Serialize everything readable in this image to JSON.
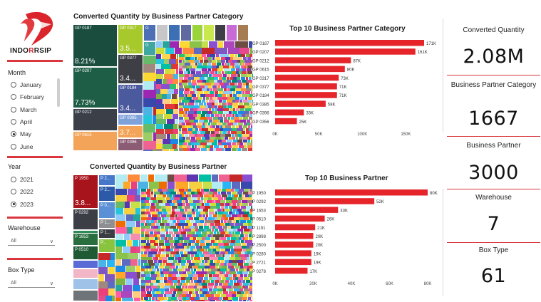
{
  "logo": {
    "text_prefix": "INDO",
    "text_r": "R",
    "text_suffix": "RSIP"
  },
  "sidebar": {
    "month": {
      "title": "Month",
      "items": [
        {
          "label": "January",
          "selected": false
        },
        {
          "label": "February",
          "selected": false
        },
        {
          "label": "March",
          "selected": false
        },
        {
          "label": "April",
          "selected": false
        },
        {
          "label": "May",
          "selected": true
        },
        {
          "label": "June",
          "selected": false
        }
      ]
    },
    "year": {
      "title": "Year",
      "items": [
        {
          "label": "2021",
          "selected": false
        },
        {
          "label": "2022",
          "selected": false
        },
        {
          "label": "2023",
          "selected": true
        }
      ]
    },
    "warehouse": {
      "title": "Warehouse",
      "value": "All"
    },
    "box_type": {
      "title": "Box Type",
      "value": "All"
    }
  },
  "treemap_category": {
    "title": "Converted Quantity by Business Partner Category",
    "tiles": [
      {
        "label": "GP 0187",
        "value": "8.21%",
        "color": "#1b4d3e"
      },
      {
        "label": "GP 0207",
        "value": "7.73%",
        "color": "#1f5e46"
      },
      {
        "label": "GP 0212",
        "value": "",
        "color": "#3a3f48"
      },
      {
        "label": "GP 0615",
        "value": "",
        "color": "#f4a458"
      },
      {
        "label": "GP 0317",
        "value": "3.5...",
        "color": "#a8c92c"
      },
      {
        "label": "GP 0377",
        "value": "",
        "color": "#3d3f45"
      },
      {
        "label": "GP 0184",
        "value": "3.4...",
        "color": "#4a5a9c"
      },
      {
        "label": "GP 0385",
        "value": "",
        "color": "#7fa2db"
      },
      {
        "label": "GP 0396",
        "value": "",
        "color": "#8c5c74"
      },
      {
        "label": "G",
        "value": "",
        "color": "#4d6fb5"
      },
      {
        "label": "G",
        "value": "",
        "color": "#3fa6a0"
      }
    ],
    "mid_values": [
      "3.4..."
    ]
  },
  "bar_category": {
    "title": "Top 10 Business Partner Category",
    "chart_data": {
      "type": "bar",
      "orientation": "horizontal",
      "categories": [
        "GP 0187",
        "GP 0207",
        "GP 0212",
        "GP 0615",
        "GP 0317",
        "GP 0377",
        "GP 0184",
        "GP 0385",
        "GP 0396",
        "GP 0356"
      ],
      "values": [
        171000,
        161000,
        87000,
        80000,
        73000,
        71000,
        71000,
        58000,
        33000,
        25000
      ],
      "labels": [
        "171K",
        "161K",
        "87K",
        "80K",
        "73K",
        "71K",
        "71K",
        "58K",
        "33K",
        "25K"
      ],
      "ticks": [
        "0K",
        "50K",
        "100K",
        "150K"
      ],
      "xlim": [
        0,
        180000
      ],
      "color": "#e5252a"
    }
  },
  "treemap_partner": {
    "title": "Converted Quantity by Business Partner",
    "tiles": [
      {
        "label": "P 1950",
        "value": "3.8...",
        "color": "#a8141c"
      },
      {
        "label": "P 0292",
        "value": "",
        "color": "#3b3e45"
      },
      {
        "label": "P 1653",
        "value": "",
        "color": "#2a6e3f"
      },
      {
        "label": "P 0510",
        "value": "",
        "color": "#1f5a34"
      },
      {
        "label": "P 2...",
        "value": "",
        "color": "#4677c8"
      },
      {
        "label": "P 2...",
        "value": "",
        "color": "#2c5aa8"
      },
      {
        "label": "P 0...",
        "value": "",
        "color": "#5b8fd6"
      },
      {
        "label": "P 1...",
        "value": "",
        "color": "#8d8f93"
      },
      {
        "label": "P 1...",
        "value": "",
        "color": "#3a3d42"
      },
      {
        "label": "P...",
        "value": "",
        "color": "#8ac43f"
      }
    ]
  },
  "bar_partner": {
    "title": "Top 10 Business Partner",
    "chart_data": {
      "type": "bar",
      "orientation": "horizontal",
      "categories": [
        "P 1950",
        "P 0292",
        "P 1653",
        "P 0510",
        "P 1191",
        "P 2898",
        "P 2500",
        "P 0280",
        "P 2721",
        "P 0278"
      ],
      "values": [
        80000,
        52000,
        33000,
        26000,
        21000,
        20000,
        20000,
        19000,
        19000,
        17000
      ],
      "labels": [
        "80K",
        "52K",
        "33K",
        "26K",
        "21K",
        "20K",
        "20K",
        "19K",
        "19K",
        "17K"
      ],
      "ticks": [
        "0K",
        "20K",
        "40K",
        "60K",
        "80K"
      ],
      "xlim": [
        0,
        80000
      ],
      "color": "#e5252a"
    }
  },
  "kpis": [
    {
      "label": "Converted Quantity",
      "value": "2.08M"
    },
    {
      "label": "Business Partner Category",
      "value": "1667"
    },
    {
      "label": "Business Partner",
      "value": "3000"
    },
    {
      "label": "Warehouse",
      "value": "7"
    },
    {
      "label": "Box Type",
      "value": "61"
    }
  ]
}
